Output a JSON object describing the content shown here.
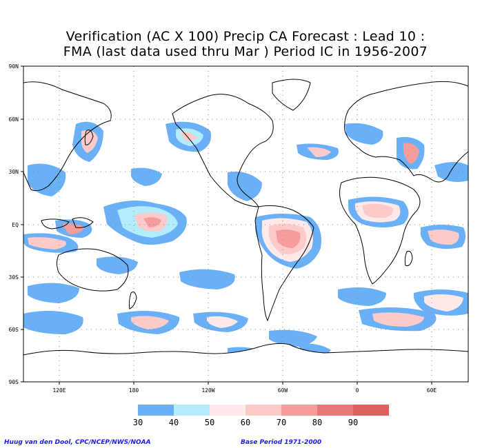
{
  "title_line1": "Verification (AC X 100) Precip CA Forecast : Lead 10 :",
  "title_line2": "FMA (last data used thru Mar ) Period IC in 1956-2007",
  "axes": {
    "lat_labels": [
      "90N",
      "60N",
      "30N",
      "EQ",
      "30S",
      "60S",
      "90S"
    ],
    "lon_labels": [
      "120E",
      "180",
      "120W",
      "60W",
      "0",
      "60E"
    ]
  },
  "legend": {
    "levels": [
      "30",
      "40",
      "50",
      "60",
      "70",
      "80",
      "90"
    ],
    "colors": [
      "#6ab0f6",
      "#b3ecfa",
      "#fee8e8",
      "#fdcaca",
      "#f59c9c",
      "#e87878",
      "#de6060"
    ]
  },
  "footer_left": "Huug van den Dool, CPC/NCEP/NWS/NOAA",
  "footer_right": "Base Period 1971-2000"
}
